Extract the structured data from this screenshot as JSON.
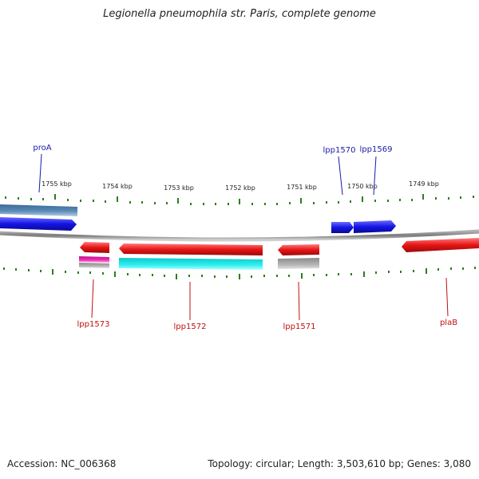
{
  "title": "Legionella pneumophila str. Paris, complete genome",
  "footer": {
    "accession": "Accession: NC_006368",
    "summary": "Topology: circular; Length: 3,503,610 bp; Genes: 3,080"
  },
  "colors": {
    "backbone": "#8c8c8c",
    "tick": "#2e7d1e",
    "forward_gene": "#1414e6",
    "reverse_gene": "#e61414",
    "gene_label_forward": "#1a1aa8",
    "gene_label_reverse": "#c01010",
    "feature_steelblue": "#4a7ea8",
    "feature_cyan": "#1ee0e0",
    "feature_magenta": "#e01aa0",
    "feature_gray": "#a8a8a8"
  },
  "scale": {
    "unit": "kbp",
    "labels": [
      "1755 kbp",
      "1754 kbp",
      "1753 kbp",
      "1752 kbp",
      "1751 kbp",
      "1750 kbp",
      "1749 kbp"
    ]
  },
  "genes": [
    {
      "name": "proA",
      "strand": "forward"
    },
    {
      "name": "lpp1570",
      "strand": "forward"
    },
    {
      "name": "lpp1569",
      "strand": "forward"
    },
    {
      "name": "lpp1573",
      "strand": "reverse"
    },
    {
      "name": "lpp1572",
      "strand": "reverse"
    },
    {
      "name": "lpp1571",
      "strand": "reverse"
    },
    {
      "name": "plaB",
      "strand": "reverse"
    }
  ]
}
